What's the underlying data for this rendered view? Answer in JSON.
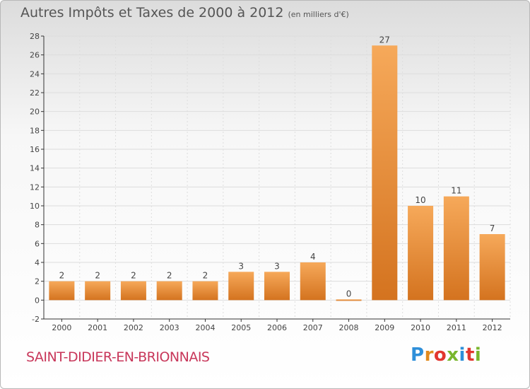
{
  "title": "Autres Impôts et Taxes de 2000 à 2012",
  "subtitle": "(en milliers d'€)",
  "commune": "SAINT-DIDIER-EN-BRIONNAIS",
  "logo": {
    "text": "Proxiti",
    "colors": [
      "#2e8fd9",
      "#e08a1e",
      "#e2362f",
      "#7ab62d",
      "#2e8fd9",
      "#e2362f",
      "#7ab62d"
    ]
  },
  "colors": {
    "bar_light": "#f6a95a",
    "bar_dark": "#d4731f",
    "grid": "#dddddd",
    "axis": "#333333",
    "label": "#444444"
  },
  "chart_data": {
    "type": "bar",
    "categories": [
      "2000",
      "2001",
      "2002",
      "2003",
      "2004",
      "2005",
      "2006",
      "2007",
      "2008",
      "2009",
      "2010",
      "2011",
      "2012"
    ],
    "values": [
      2,
      2,
      2,
      2,
      2,
      3,
      3,
      4,
      0,
      27,
      10,
      11,
      7
    ],
    "title": "Autres Impôts et Taxes de 2000 à 2012",
    "subtitle": "(en milliers d'€)",
    "xlabel": "",
    "ylabel": "",
    "ylim": [
      -2,
      28
    ],
    "yticks": [
      -2,
      0,
      2,
      4,
      6,
      8,
      10,
      12,
      14,
      16,
      18,
      20,
      22,
      24,
      26,
      28
    ],
    "grid": true,
    "legend": "none"
  }
}
